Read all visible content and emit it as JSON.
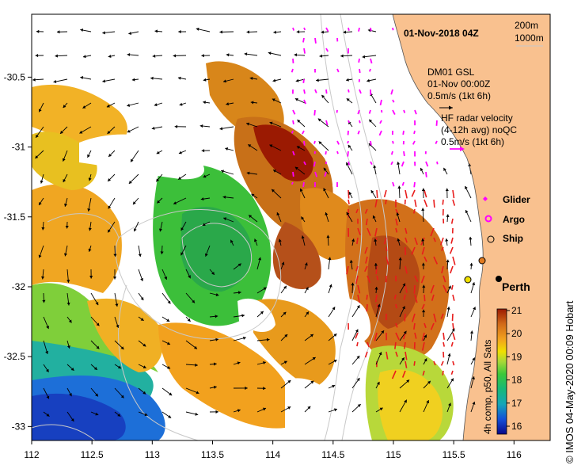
{
  "title": "01-Nov-2018 04Z",
  "depth_legend": [
    "200m",
    "1000m"
  ],
  "mooring": {
    "name": "DM01 GSL",
    "time": "01-Nov 00:00Z",
    "scale": "0.5m/s (1kt 6h)"
  },
  "radar": {
    "line1": "HF radar velocity",
    "line2": "(4-12h avg) noQC",
    "scale": "0.5m/s (1kt 6h)"
  },
  "legend": {
    "glider": "Glider",
    "argo": "Argo",
    "ship": "Ship"
  },
  "place_label": "Perth",
  "colorbar": {
    "label": "4h comp, p50, All Sats",
    "ticks": [
      "21",
      "20",
      "19",
      "18",
      "17",
      "16"
    ]
  },
  "credit": "© IMOS 04-May-2020 00:09 Hobart",
  "colors": {
    "land": "#f9c18f",
    "radar_arrow": "#e81c1c",
    "glider": "#ff00ff",
    "argo": "#ff00ff",
    "contour": "#c8c8c8"
  },
  "axes": {
    "x_ticks": [
      "112",
      "112.5",
      "113",
      "113.5",
      "114",
      "114.5",
      "115",
      "115.5",
      "116"
    ],
    "y_ticks": [
      "-30.5",
      "-31",
      "-31.5",
      "-32",
      "-32.5",
      "-33"
    ],
    "x_range": [
      112,
      116.3
    ],
    "y_range": [
      -33.1,
      -30.05
    ]
  }
}
